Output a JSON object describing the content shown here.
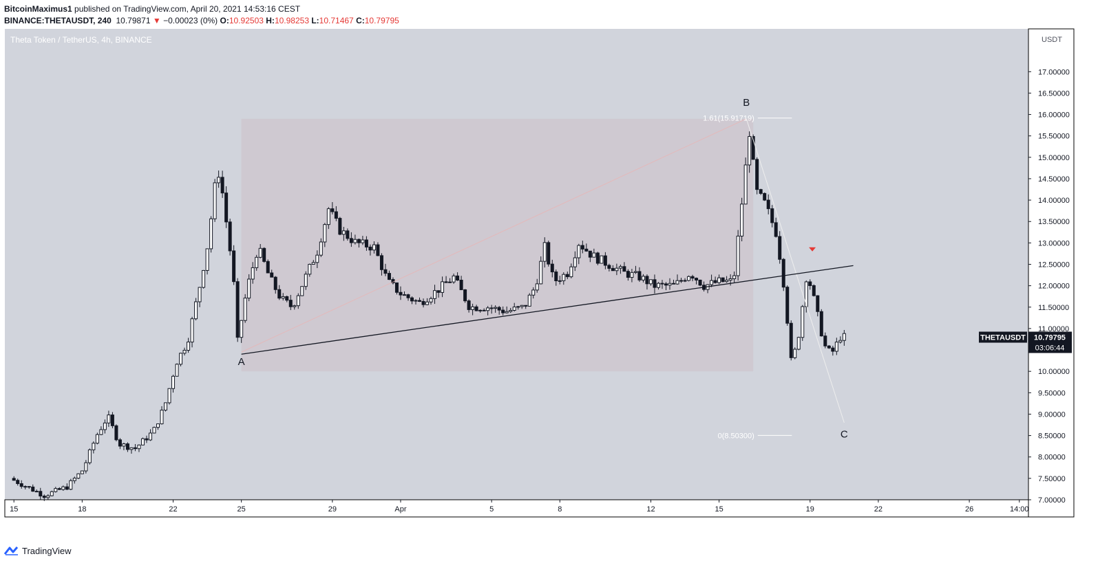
{
  "header": {
    "author": "BitcoinMaximus1",
    "published_text": "published on TradingView.com, April 20, 2021 14:53:16 CEST",
    "symbol_line": "BINANCE:THETAUSDT, 240",
    "last": "10.79871",
    "change_arrow": "▼",
    "change": "−0.00023 (0%)",
    "o_label": "O:",
    "o": "10.92503",
    "h_label": "H:",
    "h": "10.98253",
    "l_label": "L:",
    "l": "10.71467",
    "c_label": "C:",
    "c": "10.79795"
  },
  "chart_data": {
    "type": "candlestick",
    "title": "Theta Token / TetherUS, 4h, BINANCE",
    "currency": "USDT",
    "ylim": [
      7.0,
      18.0
    ],
    "y_ticks": [
      "7.00000",
      "7.50000",
      "8.00000",
      "8.50000",
      "9.00000",
      "9.50000",
      "10.00000",
      "10.50000",
      "11.00000",
      "11.50000",
      "12.00000",
      "12.50000",
      "13.00000",
      "13.50000",
      "14.00000",
      "14.50000",
      "15.00000",
      "15.50000",
      "16.00000",
      "16.50000",
      "17.00000"
    ],
    "x_ticks": [
      {
        "label": "15",
        "day": 15
      },
      {
        "label": "18",
        "day": 18
      },
      {
        "label": "22",
        "day": 22
      },
      {
        "label": "25",
        "day": 25
      },
      {
        "label": "29",
        "day": 29
      },
      {
        "label": "Apr",
        "day": 32
      },
      {
        "label": "5",
        "day": 36
      },
      {
        "label": "8",
        "day": 39
      },
      {
        "label": "12",
        "day": 43
      },
      {
        "label": "15",
        "day": 46
      },
      {
        "label": "19",
        "day": 50
      },
      {
        "label": "22",
        "day": 53
      },
      {
        "label": "26",
        "day": 57
      },
      {
        "label": "14:00",
        "day": 59.2
      }
    ],
    "price_path": [
      [
        15.0,
        7.5
      ],
      [
        16.5,
        7.1
      ],
      [
        17.5,
        7.3
      ],
      [
        18.2,
        7.7
      ],
      [
        18.8,
        8.5
      ],
      [
        19.3,
        8.95
      ],
      [
        19.8,
        8.3
      ],
      [
        20.5,
        8.2
      ],
      [
        21.3,
        8.6
      ],
      [
        21.8,
        9.2
      ],
      [
        22.3,
        10.2
      ],
      [
        22.8,
        10.7
      ],
      [
        23.3,
        11.9
      ],
      [
        23.7,
        13.0
      ],
      [
        24.0,
        14.3
      ],
      [
        24.2,
        14.7
      ],
      [
        24.5,
        13.5
      ],
      [
        24.8,
        12.3
      ],
      [
        25.0,
        10.7
      ],
      [
        25.4,
        11.9
      ],
      [
        25.9,
        12.9
      ],
      [
        26.4,
        12.2
      ],
      [
        26.9,
        11.7
      ],
      [
        27.4,
        11.5
      ],
      [
        27.9,
        12.1
      ],
      [
        28.5,
        12.8
      ],
      [
        29.0,
        13.8
      ],
      [
        29.5,
        13.3
      ],
      [
        30.2,
        13.0
      ],
      [
        31.0,
        12.9
      ],
      [
        31.6,
        12.1
      ],
      [
        32.2,
        11.8
      ],
      [
        33.0,
        11.6
      ],
      [
        33.8,
        11.9
      ],
      [
        34.5,
        12.2
      ],
      [
        35.2,
        11.5
      ],
      [
        36.0,
        11.5
      ],
      [
        36.8,
        11.4
      ],
      [
        37.6,
        11.5
      ],
      [
        38.1,
        12.0
      ],
      [
        38.5,
        12.9
      ],
      [
        38.9,
        12.1
      ],
      [
        39.5,
        12.3
      ],
      [
        40.0,
        13.0
      ],
      [
        40.6,
        12.7
      ],
      [
        41.3,
        12.5
      ],
      [
        42.0,
        12.3
      ],
      [
        42.7,
        12.2
      ],
      [
        43.3,
        12.0
      ],
      [
        44.2,
        12.0
      ],
      [
        44.9,
        12.3
      ],
      [
        45.5,
        12.0
      ],
      [
        46.2,
        12.1
      ],
      [
        46.8,
        12.1
      ],
      [
        47.2,
        14.1
      ],
      [
        47.5,
        15.6
      ],
      [
        47.8,
        14.2
      ],
      [
        48.2,
        13.9
      ],
      [
        48.7,
        13.2
      ],
      [
        49.1,
        11.7
      ],
      [
        49.3,
        10.2
      ],
      [
        49.6,
        10.6
      ],
      [
        50.0,
        12.2
      ],
      [
        50.2,
        12.0
      ],
      [
        50.5,
        11.3
      ],
      [
        50.8,
        10.6
      ],
      [
        51.1,
        10.4
      ],
      [
        51.5,
        10.8
      ]
    ],
    "boxes": [
      {
        "x1_day": 25.0,
        "x2_day": 47.5,
        "y1": 10.0,
        "y2": 15.9,
        "color": "#cfc7cf"
      }
    ],
    "trend_lines": [
      {
        "x1_day": 25.0,
        "y1": 10.4,
        "x2_day": 51.9,
        "y2": 12.47,
        "color": "#131722"
      }
    ],
    "fib_levels": [
      {
        "label": "1.61(15.91719)",
        "value": 15.91719
      },
      {
        "label": "0(8.50300)",
        "value": 8.503
      }
    ],
    "wave_labels": [
      {
        "text": "A",
        "day": 25.0,
        "price": 10.15
      },
      {
        "text": "B",
        "day": 47.2,
        "price": 16.2
      },
      {
        "text": "C",
        "day": 51.5,
        "price": 8.45
      }
    ],
    "current_price": {
      "symbol": "THETAUSDT",
      "value": "10.79795",
      "countdown": "03:06:44"
    },
    "colors": {
      "plot_bg": "#d1d4dc",
      "candle": "#131722",
      "marker": "#e53935"
    }
  },
  "footer": {
    "brand": "TradingView"
  }
}
